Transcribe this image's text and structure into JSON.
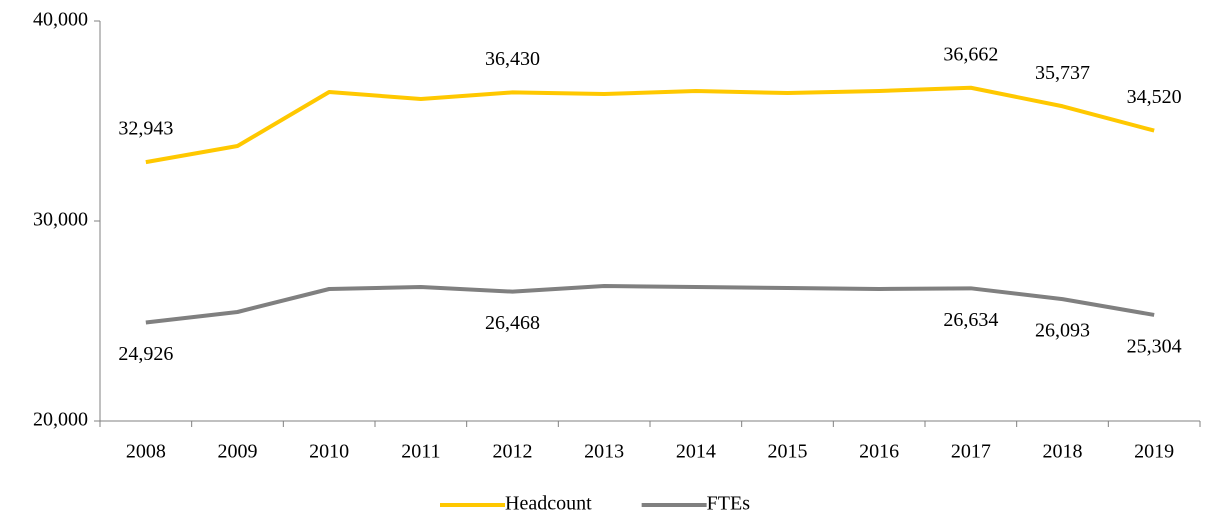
{
  "chart_data": {
    "type": "line",
    "categories": [
      "2008",
      "2009",
      "2010",
      "2011",
      "2012",
      "2013",
      "2014",
      "2015",
      "2016",
      "2017",
      "2018",
      "2019"
    ],
    "series": [
      {
        "name": "Headcount",
        "color": "#ffc800",
        "values": [
          32943,
          33750,
          36450,
          36100,
          36430,
          36350,
          36500,
          36400,
          36500,
          36662,
          35737,
          34520
        ],
        "value_labels": [
          "32,943",
          null,
          null,
          null,
          "36,430",
          null,
          null,
          null,
          null,
          "36,662",
          "35,737",
          "34,520"
        ],
        "label_position": "above"
      },
      {
        "name": "FTEs",
        "color": "#808080",
        "values": [
          24926,
          25450,
          26600,
          26700,
          26468,
          26750,
          26700,
          26650,
          26600,
          26634,
          26093,
          25304
        ],
        "value_labels": [
          "24,926",
          null,
          null,
          null,
          "26,468",
          null,
          null,
          null,
          null,
          "26,634",
          "26,093",
          "25,304"
        ],
        "label_position": "below"
      }
    ],
    "ylim": [
      20000,
      40000
    ],
    "yticks": [
      {
        "value": 20000,
        "label": "20,000"
      },
      {
        "value": 30000,
        "label": "30,000"
      },
      {
        "value": 40000,
        "label": "40,000"
      }
    ],
    "grid": false,
    "legend": "bottom"
  }
}
